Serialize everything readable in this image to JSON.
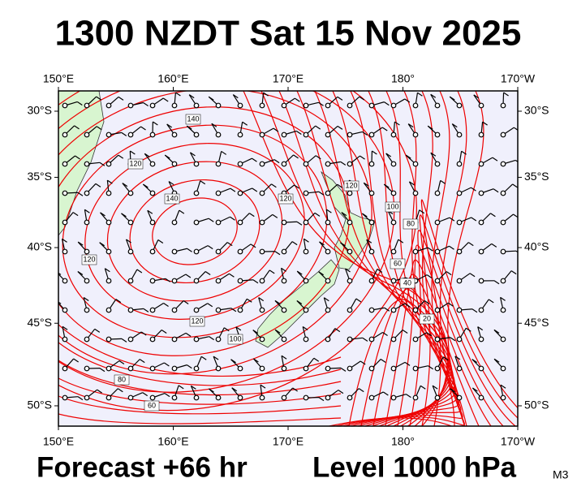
{
  "header": {
    "title": "1300 NZDT Sat 15 Nov 2025"
  },
  "map": {
    "lon_ticks": [
      {
        "value": 150,
        "label": "150°E"
      },
      {
        "value": 160,
        "label": "160°E"
      },
      {
        "value": 170,
        "label": "170°E"
      },
      {
        "value": 180,
        "label": "180°"
      },
      {
        "value": 190,
        "label": "170°W"
      }
    ],
    "lat_ticks": [
      {
        "value": -30,
        "label": "30°S"
      },
      {
        "value": -35,
        "label": "35°S"
      },
      {
        "value": -40,
        "label": "40°S"
      },
      {
        "value": -45,
        "label": "45°S"
      },
      {
        "value": -50,
        "label": "50°S"
      }
    ],
    "contour_labels": [
      "140",
      "120",
      "140",
      "120",
      "120",
      "100",
      "80",
      "60",
      "40",
      "20",
      "120",
      "120",
      "100",
      "80",
      "60"
    ]
  },
  "footer": {
    "forecast": "Forecast +66 hr",
    "level": "Level 1000 hPa",
    "code": "M3"
  }
}
